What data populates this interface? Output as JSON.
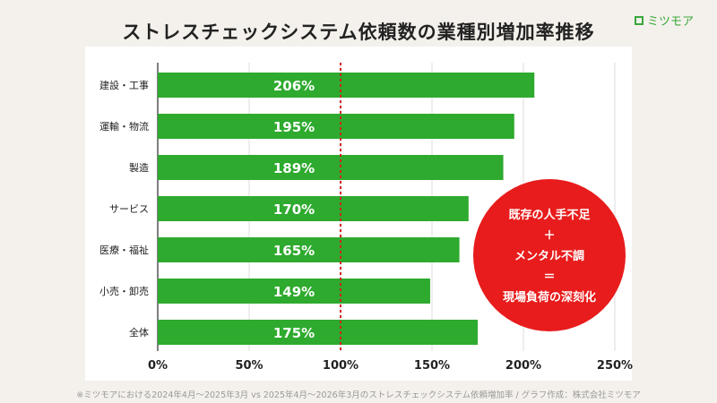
{
  "title": "ストレスチェックシステム依頼数の業種別増加率推移",
  "logo": "ミツモア",
  "footnote": "※ミツモアにおける2024年4月～2025年3月 vs 2025年4月～2026年3月のストレスチェックシステム依頼増加率 / グラフ作成：株式会社ミツモア",
  "callout": [
    "既存の人手不足",
    "＋",
    "メンタル不調",
    "＝",
    "現場負荷の深刻化"
  ],
  "colors": {
    "bar": "#2eaa2e",
    "reference_line": "#d62020",
    "callout": "#e81c1c"
  },
  "chart_data": {
    "type": "bar",
    "orientation": "horizontal",
    "categories": [
      "建設・工事",
      "運輸・物流",
      "製造",
      "サービス",
      "医療・福祉",
      "小売・卸売",
      "全体"
    ],
    "values": [
      206,
      195,
      189,
      170,
      165,
      149,
      175
    ],
    "data_labels": [
      "206%",
      "195%",
      "189%",
      "170%",
      "165%",
      "149%",
      "175%"
    ],
    "xlim": [
      0,
      250
    ],
    "xticks": [
      "0%",
      "50%",
      "100%",
      "150%",
      "200%",
      "250%"
    ],
    "reference_line": 100,
    "grid": true
  }
}
